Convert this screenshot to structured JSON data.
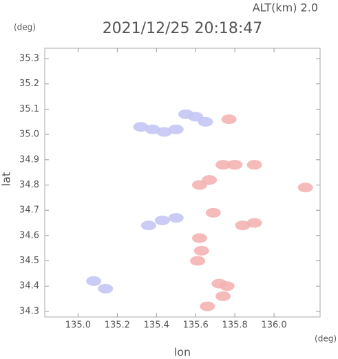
{
  "chart_data": {
    "type": "scatter",
    "title": "2021/12/25 20:18:47",
    "subtitle": "ALT(km) 2.0",
    "y_unit": "(deg)",
    "x_unit": "(deg)",
    "x_label": "lon",
    "y_label": "lat",
    "xlim": [
      134.83,
      136.235
    ],
    "ylim": [
      34.278,
      35.341
    ],
    "xticks": [
      {
        "value": 135,
        "label": "135.0"
      },
      135.2,
      135.4,
      135.6,
      135.8,
      {
        "value": 136,
        "label": "136.0"
      }
    ],
    "yticks": [
      34.3,
      34.4,
      34.5,
      34.6,
      34.7,
      34.8,
      34.9,
      {
        "value": 35,
        "label": "35.0"
      },
      35.1,
      35.2,
      35.3
    ],
    "grid": false,
    "series": [
      {
        "color": "#c4c6f4",
        "x": [
          135.32,
          135.38,
          135.44,
          135.5,
          135.55,
          135.6,
          135.65,
          135.36,
          135.43,
          135.5,
          135.08,
          135.14
        ],
        "y": [
          35.03,
          35.02,
          35.01,
          35.02,
          35.08,
          35.07,
          35.05,
          34.64,
          34.66,
          34.67,
          34.42,
          34.39
        ]
      },
      {
        "color": "#f4b2b2",
        "x": [
          135.74,
          135.8,
          135.9,
          135.62,
          135.67,
          135.69,
          135.84,
          135.9,
          135.62,
          135.63,
          135.72,
          135.76,
          135.74,
          135.66,
          136.16,
          135.77,
          135.61
        ],
        "y": [
          34.88,
          34.88,
          34.88,
          34.8,
          34.82,
          34.69,
          34.64,
          34.65,
          34.59,
          34.54,
          34.41,
          34.4,
          34.36,
          34.32,
          34.79,
          35.06,
          34.5
        ]
      }
    ]
  }
}
